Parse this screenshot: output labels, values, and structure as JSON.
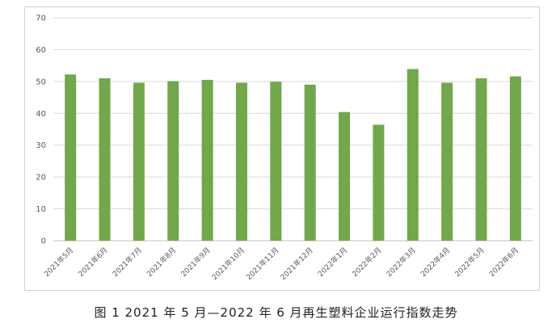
{
  "chart_data": {
    "type": "bar",
    "categories": [
      "2021年5月",
      "2021年6月",
      "2021年7月",
      "2021年8月",
      "2021年9月",
      "2021年10月",
      "2021年11月",
      "2021年12月",
      "2022年1月",
      "2022年2月",
      "2022年3月",
      "2022年4月",
      "2022年5月",
      "2022年6月"
    ],
    "values": [
      52.2,
      51.0,
      49.6,
      50.1,
      50.5,
      49.6,
      49.9,
      49.0,
      40.4,
      36.4,
      53.9,
      49.6,
      51.0,
      51.6
    ],
    "title": "",
    "xlabel": "",
    "ylabel": "",
    "ylim": [
      0,
      70
    ],
    "yticks": [
      0,
      10,
      20,
      30,
      40,
      50,
      60,
      70
    ],
    "grid": true,
    "bar_color": "#70a84a",
    "grid_color": "#d9d9d9"
  },
  "caption": "图 1  2021 年 5 月—2022 年 6 月再生塑料企业运行指数走势"
}
